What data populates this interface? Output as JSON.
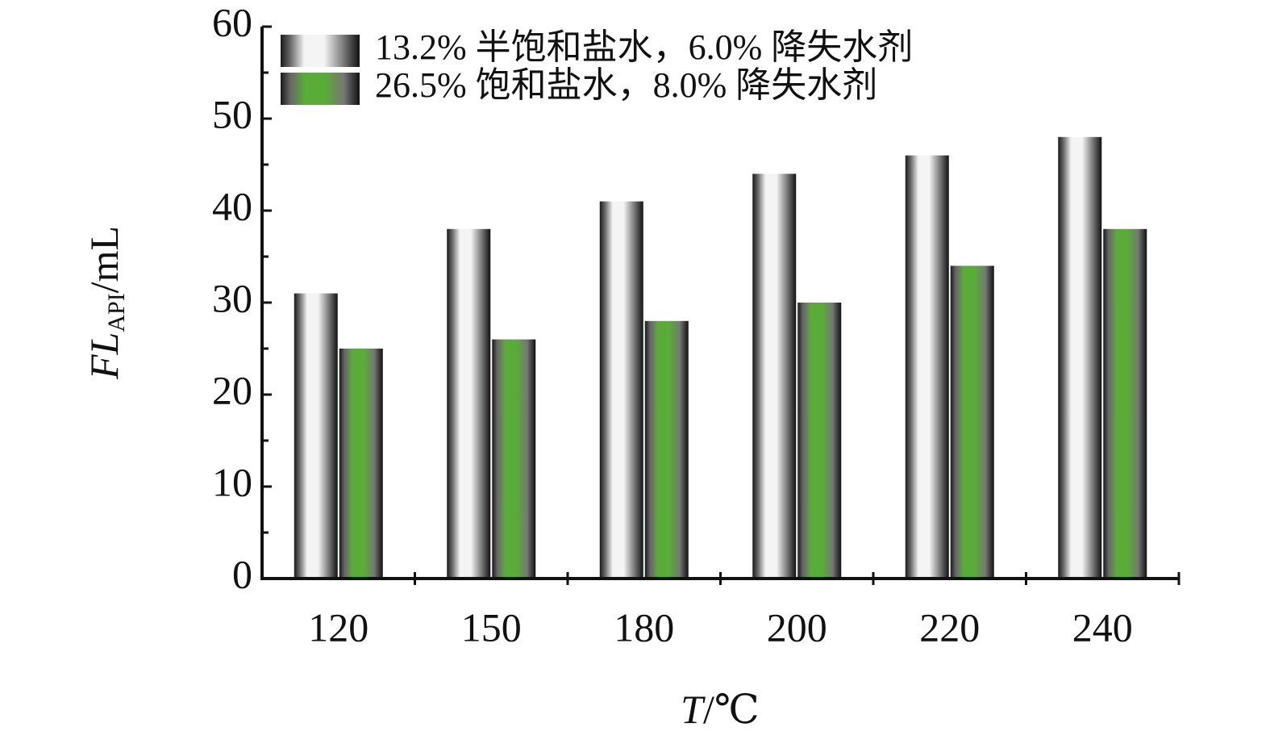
{
  "chart_data": {
    "type": "bar",
    "categories": [
      "120",
      "150",
      "180",
      "200",
      "220",
      "240"
    ],
    "series": [
      {
        "name": "13.2% 半饱和盐水，6.0% 降失水剂",
        "color": "#f4f4f4",
        "values": [
          31,
          38,
          41,
          44,
          46,
          48
        ]
      },
      {
        "name": "26.5% 饱和盐水，8.0% 降失水剂",
        "color": "#5aac38",
        "values": [
          25,
          26,
          28,
          30,
          34,
          38
        ]
      }
    ],
    "ylim": [
      0,
      60
    ],
    "yticks": [
      0,
      10,
      20,
      30,
      40,
      50,
      60
    ],
    "ylabel": [
      "FL",
      "API",
      "/mL"
    ],
    "xlabel": [
      "T",
      "/℃"
    ],
    "legend": "upper-left"
  }
}
